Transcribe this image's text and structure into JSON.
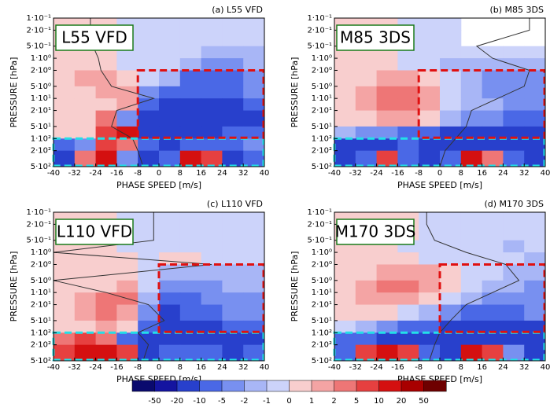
{
  "chart_data": [
    {
      "type": "contour",
      "title": "(a) L55 VFD",
      "label": "L55 VFD",
      "xlabel": "PHASE SPEED [m/s]",
      "ylabel": "PRESSURE [hPa]",
      "xlim": [
        -40,
        40
      ],
      "xticks": [
        -40,
        -32,
        -24,
        -16,
        -8,
        0,
        8,
        16,
        24,
        32,
        40
      ],
      "ylim": [
        0.1,
        500
      ],
      "log_y": true,
      "yticks": [
        {
          "value": 0.1,
          "label": "1·10⁻¹"
        },
        {
          "value": 0.2,
          "label": "2·10⁻¹"
        },
        {
          "value": 0.5,
          "label": "5·10⁻¹"
        },
        {
          "value": 1,
          "label": "1·10⁰"
        },
        {
          "value": 2,
          "label": "2·10⁰"
        },
        {
          "value": 5,
          "label": "5·10⁰"
        },
        {
          "value": 10,
          "label": "1·10¹"
        },
        {
          "value": 20,
          "label": "2·10¹"
        },
        {
          "value": 50,
          "label": "5·10¹"
        },
        {
          "value": 100,
          "label": "1·10²"
        },
        {
          "value": 200,
          "label": "2·10²"
        },
        {
          "value": 500,
          "label": "5·10²"
        }
      ],
      "z": [
        [
          0.5,
          0.5,
          0.5,
          -0.5,
          -0.5,
          -0.5,
          -0.5,
          -0.5,
          -0.5,
          -0.5
        ],
        [
          0.5,
          0.5,
          0.5,
          -0.5,
          -0.5,
          -0.5,
          -0.5,
          -0.5,
          -0.5,
          -0.5
        ],
        [
          0.5,
          0.5,
          0.5,
          -0.5,
          -0.5,
          -0.5,
          -0.5,
          -1.5,
          -1.5,
          -1.5
        ],
        [
          0.5,
          0.5,
          0.5,
          -0.5,
          -0.5,
          -0.5,
          -1.5,
          -3,
          -3,
          -1.5
        ],
        [
          0.5,
          1.5,
          1.5,
          0.5,
          -0.5,
          -1.5,
          -7,
          -7,
          -7,
          -3
        ],
        [
          0.5,
          0.5,
          1.5,
          1.5,
          -3,
          -7,
          -7,
          -7,
          -7,
          -3
        ],
        [
          0.5,
          0.5,
          0.5,
          1.5,
          -7,
          -15,
          -15,
          -15,
          -15,
          -7
        ],
        [
          0.5,
          0.5,
          3,
          -3,
          -15,
          -15,
          -15,
          -15,
          -15,
          -15
        ],
        [
          0.5,
          0.5,
          7,
          15,
          -15,
          -15,
          -15,
          -15,
          -7,
          -7
        ],
        [
          -7,
          -3,
          7,
          3,
          -7,
          -15,
          -7,
          -7,
          -7,
          -3
        ],
        [
          -15,
          3,
          15,
          -3,
          -15,
          -7,
          15,
          7,
          -15,
          -7
        ]
      ],
      "profile": {
        "x": [
          -26,
          -26,
          -25,
          -23,
          -22,
          -18,
          -2,
          -16,
          -18,
          -10,
          -8,
          -6
        ],
        "y": [
          0.1,
          0.2,
          0.5,
          1,
          2,
          5,
          10,
          20,
          50,
          100,
          200,
          500
        ]
      },
      "red_box": {
        "x": [
          -8,
          40
        ],
        "y": [
          2,
          100
        ]
      },
      "cyan_box": {
        "x": [
          -40,
          40
        ],
        "y": [
          100,
          500
        ]
      }
    },
    {
      "type": "contour",
      "title": "(b) M85 3DS",
      "label": "M85 3DS",
      "xlabel": "PHASE SPEED [m/s]",
      "ylabel": "PRESSURE [hPa]",
      "xlim": [
        -40,
        40
      ],
      "xticks": [
        -40,
        -32,
        -24,
        -16,
        -8,
        0,
        8,
        16,
        24,
        32,
        40
      ],
      "ylim": [
        0.1,
        500
      ],
      "log_y": true,
      "yticks": [
        {
          "value": 0.1,
          "label": "1·10⁻¹"
        },
        {
          "value": 0.2,
          "label": "2·10⁻¹"
        },
        {
          "value": 0.5,
          "label": "5·10⁻¹"
        },
        {
          "value": 1,
          "label": "1·10⁰"
        },
        {
          "value": 2,
          "label": "2·10⁰"
        },
        {
          "value": 5,
          "label": "5·10⁰"
        },
        {
          "value": 10,
          "label": "1·10¹"
        },
        {
          "value": 20,
          "label": "2·10¹"
        },
        {
          "value": 50,
          "label": "5·10¹"
        },
        {
          "value": 100,
          "label": "1·10²"
        },
        {
          "value": 200,
          "label": "2·10²"
        },
        {
          "value": 500,
          "label": "5·10²"
        }
      ],
      "z": [
        [
          0.5,
          0.5,
          0.5,
          -0.5,
          -0.5,
          -0.5,
          null,
          null,
          null,
          null
        ],
        [
          0.5,
          0.5,
          0.5,
          -0.5,
          -0.5,
          -0.5,
          null,
          null,
          null,
          null
        ],
        [
          0.5,
          0.5,
          0.5,
          -0.5,
          -0.5,
          -0.5,
          -0.5,
          -0.5,
          -0.5,
          -0.5
        ],
        [
          0.5,
          0.5,
          0.5,
          -0.5,
          -0.5,
          -1.5,
          -1.5,
          -1.5,
          -1.5,
          -1.5
        ],
        [
          0.5,
          0.5,
          1.5,
          1.5,
          0.5,
          -0.5,
          -1.5,
          -3,
          -3,
          -3
        ],
        [
          0.5,
          1.5,
          3,
          3,
          1.5,
          -0.5,
          -1.5,
          -3,
          -3,
          -3
        ],
        [
          0.5,
          1.5,
          3,
          3,
          1.5,
          -0.5,
          -1.5,
          -1.5,
          -3,
          -3
        ],
        [
          0.5,
          0.5,
          1.5,
          1.5,
          0.5,
          -1.5,
          -3,
          -3,
          -7,
          -7
        ],
        [
          -1.5,
          -3,
          -3,
          -7,
          -7,
          -15,
          -15,
          -15,
          -15,
          -15
        ],
        [
          -15,
          -15,
          -15,
          -7,
          -15,
          -15,
          -15,
          -15,
          -15,
          -15
        ],
        [
          -15,
          -7,
          7,
          -7,
          -15,
          -7,
          15,
          3,
          -7,
          -15
        ]
      ],
      "profile": {
        "x": [
          34,
          34,
          14,
          20,
          34,
          32,
          22,
          12,
          10,
          6,
          2,
          0
        ],
        "y": [
          0.1,
          0.2,
          0.5,
          1,
          2,
          5,
          10,
          20,
          50,
          100,
          200,
          500
        ]
      },
      "red_box": {
        "x": [
          -8,
          40
        ],
        "y": [
          2,
          100
        ]
      },
      "cyan_box": {
        "x": [
          -40,
          40
        ],
        "y": [
          100,
          500
        ]
      }
    },
    {
      "type": "contour",
      "title": "(c) L110 VFD",
      "label": "L110 VFD",
      "xlabel": "PHASE SPEED [m/s]",
      "ylabel": "PRESSURE [hPa]",
      "xlim": [
        -40,
        40
      ],
      "xticks": [
        -40,
        -32,
        -24,
        -16,
        -8,
        0,
        8,
        16,
        24,
        32,
        40
      ],
      "ylim": [
        0.1,
        500
      ],
      "log_y": true,
      "yticks": [
        {
          "value": 0.1,
          "label": "1·10⁻¹"
        },
        {
          "value": 0.2,
          "label": "2·10⁻¹"
        },
        {
          "value": 0.5,
          "label": "5·10⁻¹"
        },
        {
          "value": 1,
          "label": "1·10⁰"
        },
        {
          "value": 2,
          "label": "2·10⁰"
        },
        {
          "value": 5,
          "label": "5·10⁰"
        },
        {
          "value": 10,
          "label": "1·10¹"
        },
        {
          "value": 20,
          "label": "2·10¹"
        },
        {
          "value": 50,
          "label": "5·10¹"
        },
        {
          "value": 100,
          "label": "1·10²"
        },
        {
          "value": 200,
          "label": "2·10²"
        },
        {
          "value": 500,
          "label": "5·10²"
        }
      ],
      "z": [
        [
          0.5,
          0.5,
          0.5,
          -0.5,
          -0.5,
          -0.5,
          -0.5,
          -0.5,
          -0.5,
          -0.5
        ],
        [
          0.5,
          0.5,
          0.5,
          -0.5,
          -0.5,
          -0.5,
          -0.5,
          -0.5,
          -0.5,
          -0.5
        ],
        [
          0.5,
          0.5,
          0.5,
          -0.5,
          -0.5,
          -0.5,
          -0.5,
          -0.5,
          -0.5,
          -0.5
        ],
        [
          0.5,
          0.5,
          0.5,
          0.5,
          -0.5,
          0.5,
          0.5,
          -0.5,
          -0.5,
          -0.5
        ],
        [
          0.5,
          0.5,
          0.5,
          0.5,
          -0.5,
          -1.5,
          -1.5,
          -1.5,
          -1.5,
          -1.5
        ],
        [
          0.5,
          0.5,
          0.5,
          1.5,
          -0.5,
          -3,
          -3,
          -3,
          -1.5,
          -1.5
        ],
        [
          0.5,
          1.5,
          3,
          3,
          -1.5,
          -7,
          -7,
          -3,
          -3,
          -3
        ],
        [
          0.5,
          1.5,
          3,
          1.5,
          -3,
          -15,
          -7,
          -7,
          -3,
          -3
        ],
        [
          0.5,
          0.5,
          1.5,
          0.5,
          -7,
          -15,
          -15,
          -15,
          -7,
          -7
        ],
        [
          3,
          7,
          3,
          -7,
          -15,
          -15,
          -15,
          -15,
          -15,
          -15
        ],
        [
          7,
          15,
          15,
          7,
          -15,
          -7,
          -7,
          -7,
          -15,
          -7
        ]
      ],
      "profile": {
        "x": [
          -2,
          -2,
          -2,
          -40,
          20,
          -40,
          -20,
          -4,
          2,
          -8,
          -4,
          -6
        ],
        "y": [
          0.1,
          0.2,
          0.5,
          1,
          2,
          5,
          10,
          20,
          50,
          100,
          200,
          500
        ]
      },
      "red_box": {
        "x": [
          0,
          40
        ],
        "y": [
          2,
          100
        ]
      },
      "cyan_box": {
        "x": [
          -40,
          40
        ],
        "y": [
          100,
          500
        ]
      }
    },
    {
      "type": "contour",
      "title": "(d) M170 3DS",
      "label": "M170 3DS",
      "xlabel": "PHASE SPEED [m/s]",
      "ylabel": "PRESSURE [hPa]",
      "xlim": [
        -40,
        40
      ],
      "xticks": [
        -40,
        -32,
        -24,
        -16,
        -8,
        0,
        8,
        16,
        24,
        32,
        40
      ],
      "ylim": [
        0.1,
        500
      ],
      "log_y": true,
      "yticks": [
        {
          "value": 0.1,
          "label": "1·10⁻¹"
        },
        {
          "value": 0.2,
          "label": "2·10⁻¹"
        },
        {
          "value": 0.5,
          "label": "5·10⁻¹"
        },
        {
          "value": 1,
          "label": "1·10⁰"
        },
        {
          "value": 2,
          "label": "2·10⁰"
        },
        {
          "value": 5,
          "label": "5·10⁰"
        },
        {
          "value": 10,
          "label": "1·10¹"
        },
        {
          "value": 20,
          "label": "2·10¹"
        },
        {
          "value": 50,
          "label": "5·10¹"
        },
        {
          "value": 100,
          "label": "1·10²"
        },
        {
          "value": 200,
          "label": "2·10²"
        },
        {
          "value": 500,
          "label": "5·10²"
        }
      ],
      "z": [
        [
          0.5,
          0.5,
          0.5,
          0.5,
          -0.5,
          -0.5,
          -0.5,
          -0.5,
          -0.5,
          -0.5
        ],
        [
          0.5,
          0.5,
          0.5,
          0.5,
          -0.5,
          -0.5,
          -0.5,
          -0.5,
          -0.5,
          -0.5
        ],
        [
          0.5,
          0.5,
          0.5,
          -0.5,
          -0.5,
          -0.5,
          -0.5,
          -0.5,
          -1.5,
          -0.5
        ],
        [
          0.5,
          0.5,
          0.5,
          0.5,
          -0.5,
          -0.5,
          -0.5,
          -0.5,
          -0.5,
          -1.5
        ],
        [
          0.5,
          0.5,
          1.5,
          1.5,
          1.5,
          0.5,
          -0.5,
          -0.5,
          -1.5,
          -1.5
        ],
        [
          0.5,
          1.5,
          3,
          3,
          1.5,
          0.5,
          -0.5,
          -1.5,
          -1.5,
          -3
        ],
        [
          0.5,
          1.5,
          1.5,
          1.5,
          0.5,
          -0.5,
          -1.5,
          -3,
          -3,
          -3
        ],
        [
          0.5,
          0.5,
          0.5,
          -0.5,
          -1.5,
          -3,
          -7,
          -7,
          -7,
          -3
        ],
        [
          -0.5,
          -1.5,
          -3,
          -7,
          -7,
          -15,
          -15,
          -15,
          -15,
          -15
        ],
        [
          -7,
          -7,
          -15,
          -15,
          -15,
          -15,
          -15,
          -15,
          -15,
          -15
        ],
        [
          -7,
          7,
          15,
          7,
          -7,
          -15,
          15,
          7,
          -3,
          -15
        ]
      ],
      "profile": {
        "x": [
          -5,
          -5,
          -2,
          10,
          25,
          30,
          20,
          10,
          4,
          0,
          -2,
          -4
        ],
        "y": [
          0.1,
          0.2,
          0.5,
          1,
          2,
          5,
          10,
          20,
          50,
          100,
          200,
          500
        ]
      },
      "red_box": {
        "x": [
          0,
          40
        ],
        "y": [
          2,
          100
        ]
      },
      "cyan_box": {
        "x": [
          -40,
          40
        ],
        "y": [
          100,
          500
        ]
      }
    },
    {
      "type": "colorbar",
      "levels": [
        -50,
        -20,
        -10,
        -5,
        -2,
        -1,
        0,
        1,
        2,
        5,
        10,
        20,
        50
      ],
      "colors": [
        "#0a0a6e",
        "#1414a0",
        "#2840cc",
        "#4a68e6",
        "#7890f0",
        "#a8b6f6",
        "#ccd3fa",
        "#f8cece",
        "#f4a4a4",
        "#ee7676",
        "#e64040",
        "#d41010",
        "#a80000",
        "#6e0000"
      ]
    }
  ]
}
